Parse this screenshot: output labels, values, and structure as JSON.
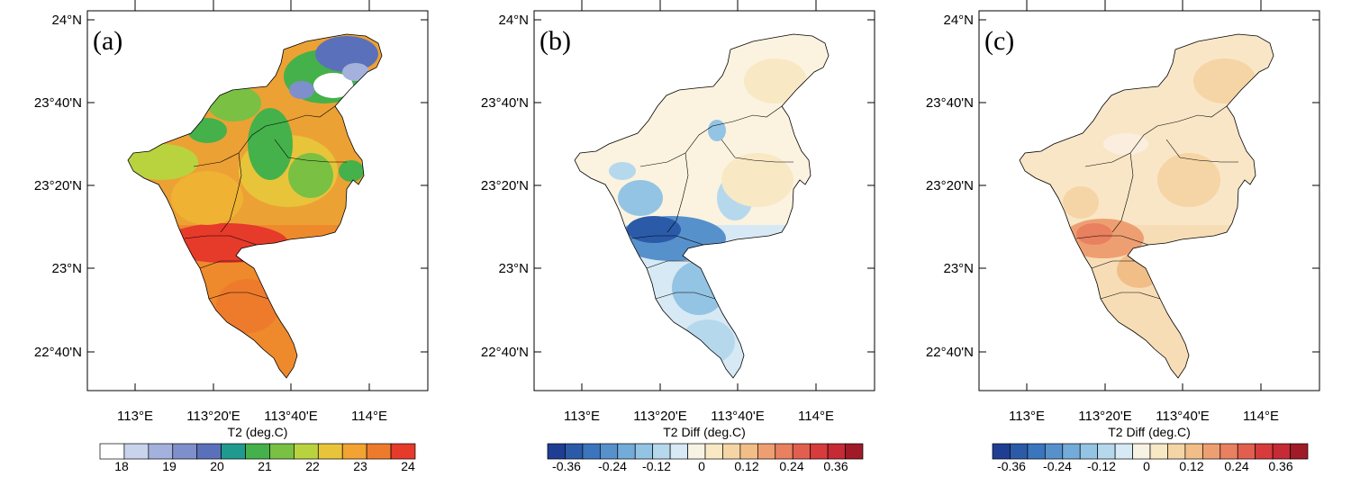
{
  "colors": {
    "abs_ramp": [
      "#ffffff",
      "#c9d3ec",
      "#a3b1dc",
      "#7f8fcb",
      "#5b70ba",
      "#1f9a8e",
      "#45b14a",
      "#79c043",
      "#b9d33f",
      "#e8c43a",
      "#f2a332",
      "#ee7b2c",
      "#e63a2b"
    ],
    "diff_ramp": [
      "#1f3e93",
      "#2b5ba8",
      "#3a75bd",
      "#5791cc",
      "#73abd9",
      "#94c4e4",
      "#b6d8ed",
      "#d6e9f4",
      "#f6f3e4",
      "#f8e8c4",
      "#f5d5a5",
      "#f2be88",
      "#ee9f72",
      "#e9805f",
      "#e25f4f",
      "#d73b3b",
      "#c52a35",
      "#a01a27"
    ],
    "panel_a_main": "#eca135",
    "panel_b_main": "#fbf3df",
    "panel_c_main": "#f9e6c7"
  },
  "panels": [
    {
      "letter": "(a)",
      "lat_labels": [
        "24°N",
        "23°40'N",
        "23°20'N",
        "23°N",
        "22°40'N"
      ],
      "lon_labels": [
        "113°E",
        "113°20'E",
        "113°40'E",
        "114°E"
      ],
      "colorbar_title": "T2 (deg.C)",
      "colorbar_labels": [
        "18",
        "19",
        "20",
        "21",
        "22",
        "23",
        "24"
      ]
    },
    {
      "letter": "(b)",
      "lat_labels": [
        "24°N",
        "23°40'N",
        "23°20'N",
        "23°N",
        "22°40'N"
      ],
      "lon_labels": [
        "113°E",
        "113°20'E",
        "113°40'E",
        "114°E"
      ],
      "colorbar_title": "T2 Diff (deg.C)",
      "colorbar_labels": [
        "-0.36",
        "-0.24",
        "-0.12",
        "0",
        "0.12",
        "0.24",
        "0.36"
      ]
    },
    {
      "letter": "(c)",
      "lat_labels": [
        "24°N",
        "23°40'N",
        "23°20'N",
        "23°N",
        "22°40'N"
      ],
      "lon_labels": [
        "113°E",
        "113°20'E",
        "113°40'E",
        "114°E"
      ],
      "colorbar_title": "T2 Diff (deg.C)",
      "colorbar_labels": [
        "-0.36",
        "-0.24",
        "-0.12",
        "0",
        "0.12",
        "0.24",
        "0.36"
      ]
    }
  ]
}
